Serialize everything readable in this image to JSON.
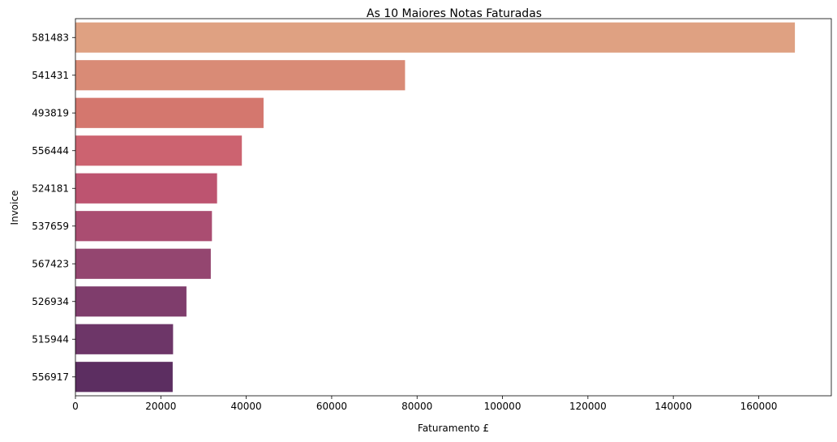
{
  "chart_data": {
    "type": "bar",
    "orientation": "horizontal",
    "title": "As 10 Maiores Notas Faturadas",
    "xlabel": "Faturamento £",
    "ylabel": "Invoice",
    "categories": [
      "581483",
      "541431",
      "493819",
      "556444",
      "524181",
      "537659",
      "567423",
      "526934",
      "515944",
      "556917"
    ],
    "values": [
      168470,
      77184,
      44052,
      38970,
      33167,
      31967,
      31698,
      26000,
      22863,
      22775
    ],
    "colors": [
      "#dfa182",
      "#d98b76",
      "#d4776e",
      "#cc6370",
      "#bd5470",
      "#aa4d71",
      "#944670",
      "#7f3d6c",
      "#6d3668",
      "#5c2e61"
    ],
    "xlim": [
      0,
      177000
    ],
    "xticks": [
      0,
      20000,
      40000,
      60000,
      80000,
      100000,
      120000,
      140000,
      160000
    ],
    "grid": false,
    "legend": "none"
  }
}
